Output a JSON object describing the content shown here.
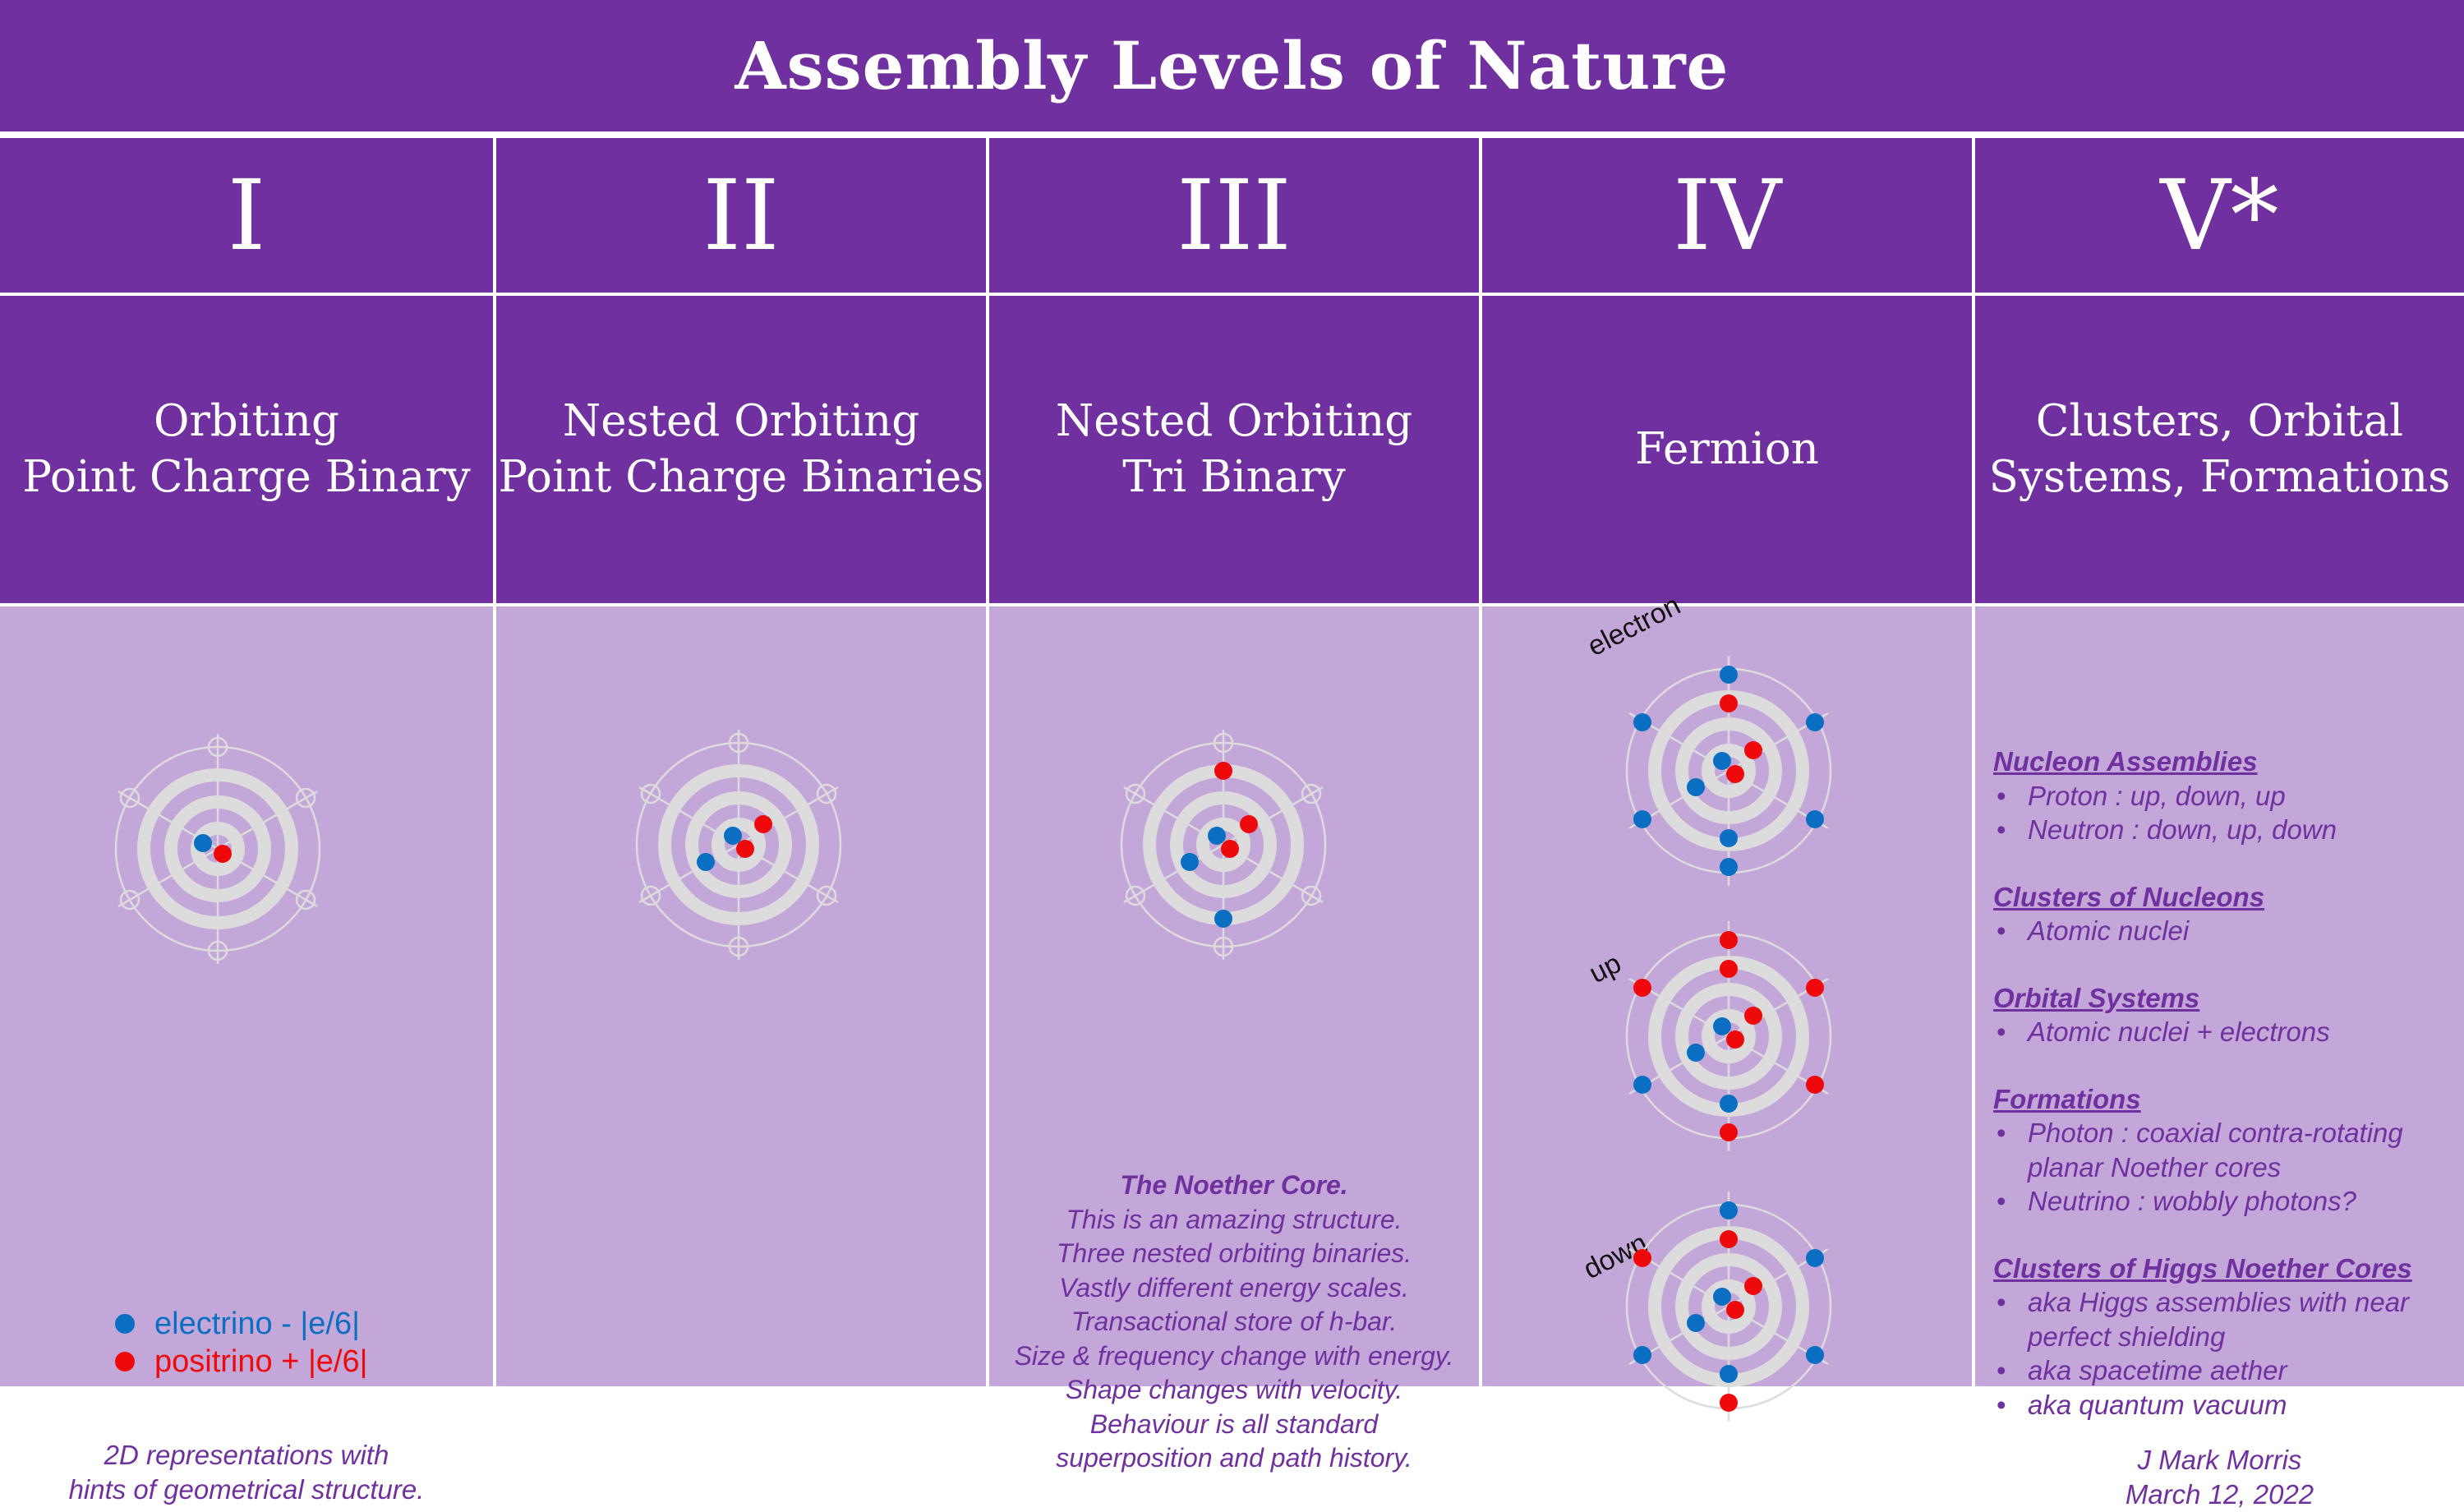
{
  "title": "Assembly Levels of Nature",
  "columns": [
    {
      "numeral": "I",
      "subtitle": [
        "Orbiting",
        "Point Charge Binary"
      ]
    },
    {
      "numeral": "II",
      "subtitle": [
        "Nested Orbiting",
        "Point Charge Binaries"
      ]
    },
    {
      "numeral": "III",
      "subtitle": [
        "Nested Orbiting",
        "Tri Binary"
      ]
    },
    {
      "numeral": "IV",
      "subtitle": [
        "Fermion"
      ]
    },
    {
      "numeral": "V*",
      "subtitle": [
        "Clusters, Orbital",
        "Systems, Formations"
      ]
    }
  ],
  "legend": {
    "electrino": "electrino - |e/6|",
    "positrino": "positrino + |e/6|"
  },
  "col1_note": [
    "2D representations with",
    "hints of geometrical structure."
  ],
  "noether": {
    "heading": "The Noether Core.",
    "lines": [
      "This is an amazing structure.",
      "Three nested orbiting binaries.",
      "Vastly different energy scales.",
      "Transactional store of h-bar.",
      "Size & frequency change with energy.",
      "Shape changes with velocity.",
      "Behaviour is all standard",
      "superposition and path history."
    ]
  },
  "fermion_labels": {
    "electron": "electron",
    "up": "up",
    "down": "down"
  },
  "col5": {
    "sections": [
      {
        "heading": "Nucleon Assemblies",
        "items": [
          "Proton : up, down, up",
          "Neutron : down, up, down"
        ]
      },
      {
        "heading": "Clusters of Nucleons",
        "items": [
          "Atomic nuclei"
        ]
      },
      {
        "heading": "Orbital Systems",
        "items": [
          "Atomic nuclei + electrons"
        ]
      },
      {
        "heading": "Formations",
        "items": [
          "Photon : coaxial contra-rotating planar Noether cores",
          "Neutrino : wobbly photons?"
        ]
      },
      {
        "heading": "Clusters of Higgs Noether Cores",
        "items": [
          "aka Higgs assemblies with near perfect shielding",
          "aka spacetime aether",
          "aka quantum vacuum"
        ]
      }
    ],
    "author": "J Mark Morris",
    "date": "March 12, 2022"
  },
  "colors": {
    "purple": "#70309f",
    "lavender": "#c3a7d8",
    "blue": "#0a6fc2",
    "red": "#ee0a0a"
  }
}
